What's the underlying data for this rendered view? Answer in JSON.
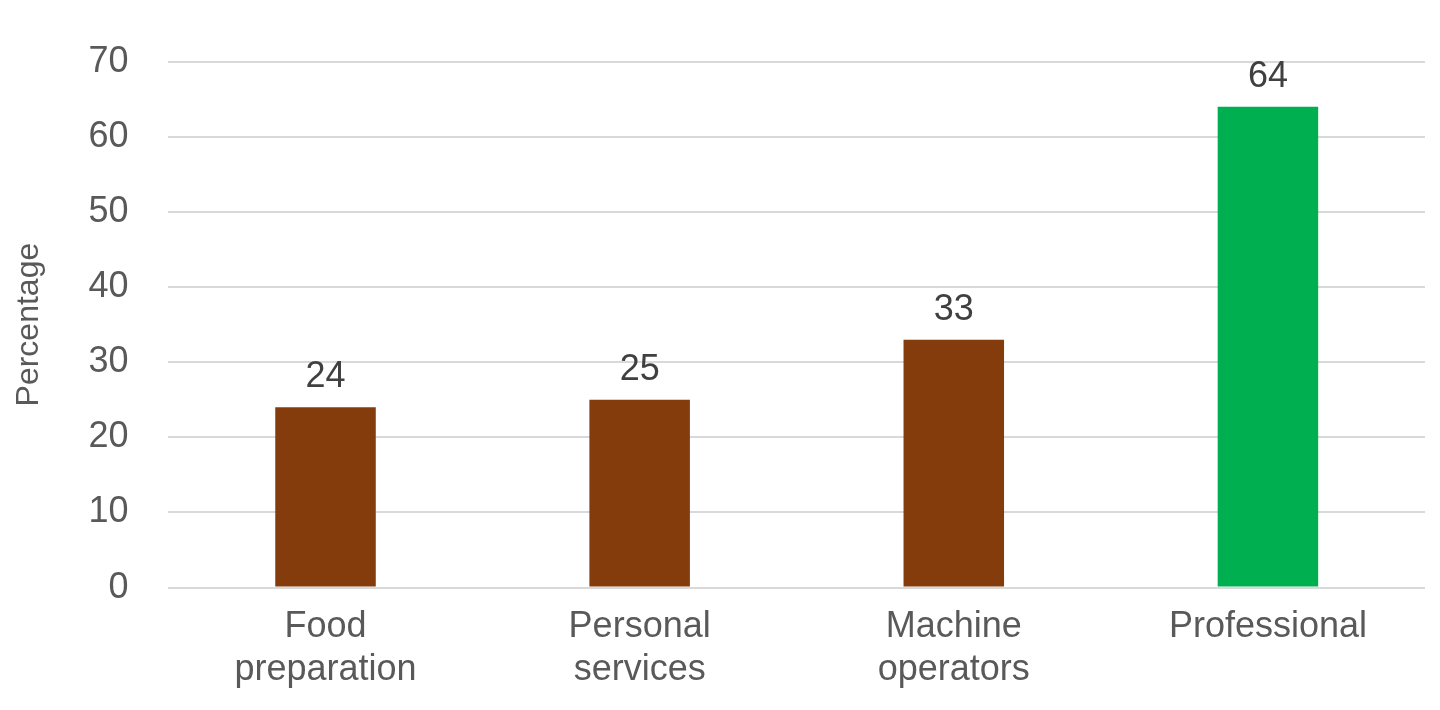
{
  "chart_data": {
    "type": "bar",
    "ylabel": "Percentage",
    "categories": [
      "Food preparation",
      "Personal services",
      "Machine operators",
      "Professional"
    ],
    "values": [
      24,
      25,
      33,
      64
    ],
    "colors": [
      "#843c0c",
      "#843c0c",
      "#843c0c",
      "#00b050"
    ],
    "ylim": [
      0,
      70
    ],
    "yticks": [
      0,
      10,
      20,
      30,
      40,
      50,
      60,
      70
    ],
    "grid": "y",
    "data_labels": true
  }
}
